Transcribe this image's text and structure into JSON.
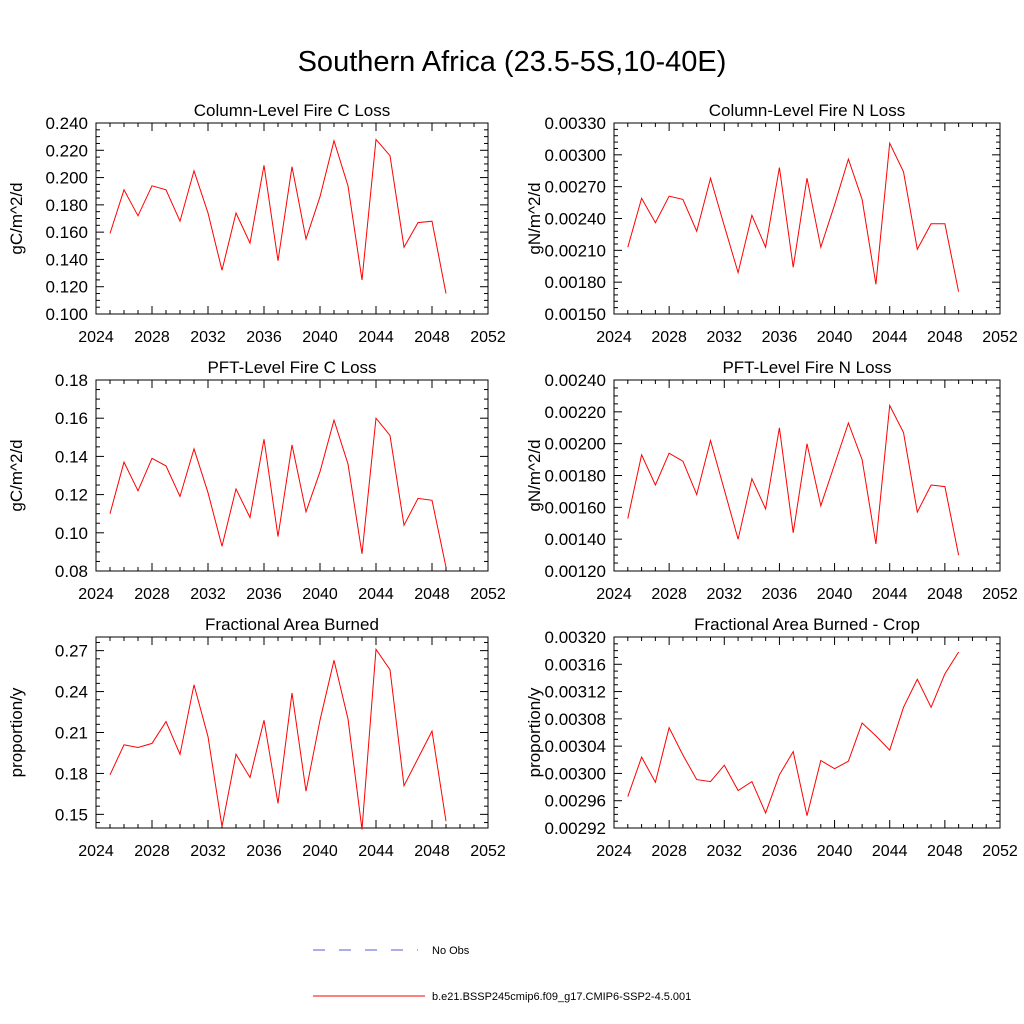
{
  "page_title": "Southern Africa (23.5-5S,10-40E)",
  "line_color": "#ff0000",
  "obs_color": "#5b5bd6",
  "legend": {
    "obs_label": "No Obs",
    "model_label": "b.e21.BSSP245cmip6.f09_g17.CMIP6-SSP2-4.5.001"
  },
  "chart_data": [
    {
      "type": "line",
      "title": "Column-Level Fire C Loss",
      "ylabel": "gC/m^2/d",
      "xlim": [
        2024,
        2052
      ],
      "xticks": [
        2024,
        2028,
        2032,
        2036,
        2040,
        2044,
        2048,
        2052
      ],
      "xtick_labels": [
        "2024",
        "2028",
        "2032",
        "2036",
        "2040",
        "2044",
        "2048",
        "2052"
      ],
      "ylim": [
        0.1,
        0.24
      ],
      "yticks": [
        0.1,
        0.12,
        0.14,
        0.16,
        0.18,
        0.2,
        0.22,
        0.24
      ],
      "ytick_labels": [
        "0.100",
        "0.120",
        "0.140",
        "0.160",
        "0.180",
        "0.200",
        "0.220",
        "0.240"
      ],
      "minor_yticks": 4,
      "series": [
        {
          "x": [
            2025,
            2026,
            2027,
            2028,
            2029,
            2030,
            2031,
            2032,
            2033,
            2034,
            2035,
            2036,
            2037,
            2038,
            2039,
            2040,
            2041,
            2042,
            2043,
            2044,
            2045,
            2046,
            2047,
            2048,
            2049
          ],
          "values": [
            0.159,
            0.191,
            0.172,
            0.194,
            0.191,
            0.168,
            0.205,
            0.174,
            0.132,
            0.174,
            0.152,
            0.209,
            0.139,
            0.208,
            0.155,
            0.186,
            0.227,
            0.194,
            0.125,
            0.228,
            0.216,
            0.149,
            0.167,
            0.168,
            0.115
          ]
        }
      ]
    },
    {
      "type": "line",
      "title": "Column-Level Fire N Loss",
      "ylabel": "gN/m^2/d",
      "xlim": [
        2024,
        2052
      ],
      "xticks": [
        2024,
        2028,
        2032,
        2036,
        2040,
        2044,
        2048,
        2052
      ],
      "xtick_labels": [
        "2024",
        "2028",
        "2032",
        "2036",
        "2040",
        "2044",
        "2048",
        "2052"
      ],
      "ylim": [
        0.0015,
        0.0033
      ],
      "yticks": [
        0.0015,
        0.0018,
        0.0021,
        0.0024,
        0.0027,
        0.003,
        0.0033
      ],
      "ytick_labels": [
        "0.00150",
        "0.00180",
        "0.00210",
        "0.00240",
        "0.00270",
        "0.00300",
        "0.00330"
      ],
      "minor_yticks": 5,
      "series": [
        {
          "x": [
            2025,
            2026,
            2027,
            2028,
            2029,
            2030,
            2031,
            2032,
            2033,
            2034,
            2035,
            2036,
            2037,
            2038,
            2039,
            2040,
            2041,
            2042,
            2043,
            2044,
            2045,
            2046,
            2047,
            2048,
            2049
          ],
          "values": [
            0.00213,
            0.00259,
            0.00236,
            0.00261,
            0.00258,
            0.00228,
            0.00278,
            0.00233,
            0.00189,
            0.00243,
            0.00213,
            0.00288,
            0.00194,
            0.00278,
            0.00213,
            0.00253,
            0.00296,
            0.00258,
            0.00178,
            0.00311,
            0.00284,
            0.00211,
            0.00235,
            0.00235,
            0.00171
          ]
        }
      ]
    },
    {
      "type": "line",
      "title": "PFT-Level Fire C Loss",
      "ylabel": "gC/m^2/d",
      "xlim": [
        2024,
        2052
      ],
      "xticks": [
        2024,
        2028,
        2032,
        2036,
        2040,
        2044,
        2048,
        2052
      ],
      "xtick_labels": [
        "2024",
        "2028",
        "2032",
        "2036",
        "2040",
        "2044",
        "2048",
        "2052"
      ],
      "ylim": [
        0.08,
        0.18
      ],
      "yticks": [
        0.08,
        0.1,
        0.12,
        0.14,
        0.16,
        0.18
      ],
      "ytick_labels": [
        "0.08",
        "0.10",
        "0.12",
        "0.14",
        "0.16",
        "0.18"
      ],
      "minor_yticks": 4,
      "series": [
        {
          "x": [
            2025,
            2026,
            2027,
            2028,
            2029,
            2030,
            2031,
            2032,
            2033,
            2034,
            2035,
            2036,
            2037,
            2038,
            2039,
            2040,
            2041,
            2042,
            2043,
            2044,
            2045,
            2046,
            2047,
            2048,
            2049
          ],
          "values": [
            0.11,
            0.137,
            0.122,
            0.139,
            0.135,
            0.119,
            0.144,
            0.121,
            0.093,
            0.123,
            0.108,
            0.149,
            0.098,
            0.146,
            0.111,
            0.132,
            0.159,
            0.136,
            0.089,
            0.16,
            0.151,
            0.104,
            0.118,
            0.117,
            0.082
          ]
        }
      ]
    },
    {
      "type": "line",
      "title": "PFT-Level Fire N Loss",
      "ylabel": "gN/m^2/d",
      "xlim": [
        2024,
        2052
      ],
      "xticks": [
        2024,
        2028,
        2032,
        2036,
        2040,
        2044,
        2048,
        2052
      ],
      "xtick_labels": [
        "2024",
        "2028",
        "2032",
        "2036",
        "2040",
        "2044",
        "2048",
        "2052"
      ],
      "ylim": [
        0.0012,
        0.0024
      ],
      "yticks": [
        0.0012,
        0.0014,
        0.0016,
        0.0018,
        0.002,
        0.0022,
        0.0024
      ],
      "ytick_labels": [
        "0.00120",
        "0.00140",
        "0.00160",
        "0.00180",
        "0.00200",
        "0.00220",
        "0.00240"
      ],
      "minor_yticks": 4,
      "series": [
        {
          "x": [
            2025,
            2026,
            2027,
            2028,
            2029,
            2030,
            2031,
            2032,
            2033,
            2034,
            2035,
            2036,
            2037,
            2038,
            2039,
            2040,
            2041,
            2042,
            2043,
            2044,
            2045,
            2046,
            2047,
            2048,
            2049
          ],
          "values": [
            0.00153,
            0.00193,
            0.00174,
            0.00194,
            0.00189,
            0.00168,
            0.00202,
            0.00171,
            0.0014,
            0.00178,
            0.00159,
            0.0021,
            0.00144,
            0.002,
            0.00161,
            0.00187,
            0.00213,
            0.0019,
            0.00137,
            0.00224,
            0.00207,
            0.00157,
            0.00174,
            0.00173,
            0.0013
          ]
        }
      ]
    },
    {
      "type": "line",
      "title": "Fractional Area Burned",
      "ylabel": "proportion/y",
      "xlim": [
        2024,
        2052
      ],
      "xticks": [
        2024,
        2028,
        2032,
        2036,
        2040,
        2044,
        2048,
        2052
      ],
      "xtick_labels": [
        "2024",
        "2028",
        "2032",
        "2036",
        "2040",
        "2044",
        "2048",
        "2052"
      ],
      "ylim": [
        0.14,
        0.28
      ],
      "yticks": [
        0.15,
        0.18,
        0.21,
        0.24,
        0.27
      ],
      "ytick_labels": [
        "0.15",
        "0.18",
        "0.21",
        "0.24",
        "0.27"
      ],
      "minor_yticks": 5,
      "series": [
        {
          "x": [
            2025,
            2026,
            2027,
            2028,
            2029,
            2030,
            2031,
            2032,
            2033,
            2034,
            2035,
            2036,
            2037,
            2038,
            2039,
            2040,
            2041,
            2042,
            2043,
            2044,
            2045,
            2046,
            2047,
            2048,
            2049
          ],
          "values": [
            0.179,
            0.201,
            0.199,
            0.202,
            0.218,
            0.194,
            0.245,
            0.207,
            0.141,
            0.194,
            0.177,
            0.219,
            0.158,
            0.239,
            0.167,
            0.219,
            0.263,
            0.22,
            0.139,
            0.271,
            0.256,
            0.171,
            0.191,
            0.211,
            0.145
          ]
        }
      ]
    },
    {
      "type": "line",
      "title": "Fractional Area Burned - Crop",
      "ylabel": "proportion/y",
      "xlim": [
        2024,
        2052
      ],
      "xticks": [
        2024,
        2028,
        2032,
        2036,
        2040,
        2044,
        2048,
        2052
      ],
      "xtick_labels": [
        "2024",
        "2028",
        "2032",
        "2036",
        "2040",
        "2044",
        "2048",
        "2052"
      ],
      "ylim": [
        0.00292,
        0.0032
      ],
      "yticks": [
        0.00292,
        0.00296,
        0.003,
        0.00304,
        0.00308,
        0.00312,
        0.00316,
        0.0032
      ],
      "ytick_labels": [
        "0.00292",
        "0.00296",
        "0.00300",
        "0.00304",
        "0.00308",
        "0.00312",
        "0.00316",
        "0.00320"
      ],
      "minor_yticks": 4,
      "series": [
        {
          "x": [
            2025,
            2026,
            2027,
            2028,
            2029,
            2030,
            2031,
            2032,
            2033,
            2034,
            2035,
            2036,
            2037,
            2038,
            2039,
            2040,
            2041,
            2042,
            2043,
            2044,
            2045,
            2046,
            2047,
            2048,
            2049
          ],
          "values": [
            0.002966,
            0.003024,
            0.002987,
            0.003067,
            0.003027,
            0.002991,
            0.002988,
            0.003012,
            0.002975,
            0.002988,
            0.002942,
            0.002998,
            0.003032,
            0.002938,
            0.003019,
            0.003007,
            0.003018,
            0.003074,
            0.003055,
            0.003034,
            0.003097,
            0.003138,
            0.003097,
            0.003146,
            0.003178
          ]
        }
      ]
    }
  ]
}
